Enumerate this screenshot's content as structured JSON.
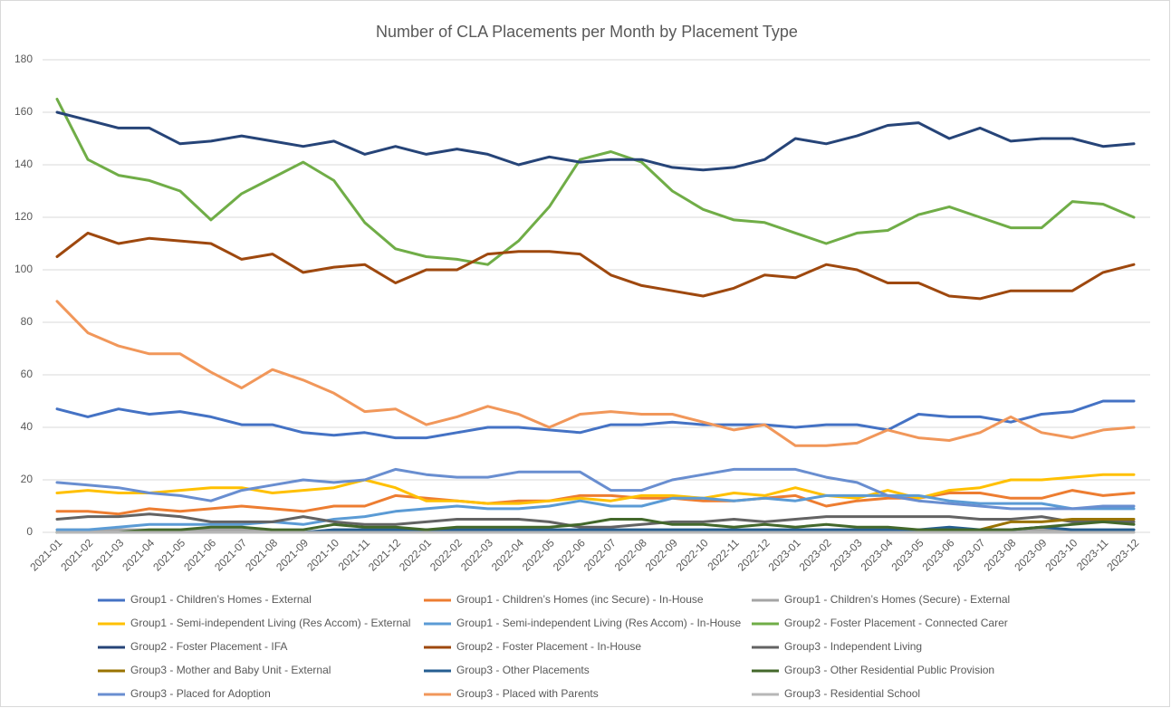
{
  "chart_data": {
    "type": "line",
    "title": "Number of CLA Placements per Month by Placement Type",
    "categories": [
      "2021-01",
      "2021-02",
      "2021-03",
      "2021-04",
      "2021-05",
      "2021-06",
      "2021-07",
      "2021-08",
      "2021-09",
      "2021-10",
      "2021-11",
      "2021-12",
      "2022-01",
      "2022-02",
      "2022-03",
      "2022-04",
      "2022-05",
      "2022-06",
      "2022-07",
      "2022-08",
      "2022-09",
      "2022-10",
      "2022-11",
      "2022-12",
      "2023-01",
      "2023-02",
      "2023-03",
      "2023-04",
      "2023-05",
      "2023-06",
      "2023-07",
      "2023-08",
      "2023-09",
      "2023-10",
      "2023-11",
      "2023-12"
    ],
    "ylim": [
      0,
      180
    ],
    "yticks": [
      0,
      20,
      40,
      60,
      80,
      100,
      120,
      140,
      160,
      180
    ],
    "grid": true,
    "series": [
      {
        "name": "Group1 - Children’s Homes - External",
        "color": "#4472c4",
        "values": [
          47,
          44,
          47,
          45,
          46,
          44,
          41,
          41,
          38,
          37,
          38,
          36,
          36,
          38,
          40,
          40,
          39,
          38,
          41,
          41,
          42,
          41,
          41,
          41,
          40,
          41,
          41,
          39,
          45,
          44,
          44,
          42,
          45,
          46,
          50,
          50
        ]
      },
      {
        "name": "Group1 - Children’s Homes (inc Secure) - In-House",
        "color": "#ed7d31",
        "values": [
          8,
          8,
          7,
          9,
          8,
          9,
          10,
          9,
          8,
          10,
          10,
          14,
          13,
          12,
          11,
          12,
          12,
          14,
          14,
          13,
          13,
          12,
          12,
          13,
          14,
          10,
          12,
          13,
          13,
          15,
          15,
          13,
          13,
          16,
          14,
          15
        ]
      },
      {
        "name": "Group1 - Children’s Homes (Secure) - External",
        "color": "#a5a5a5",
        "values": [
          1,
          1,
          1,
          1,
          1,
          1,
          1,
          0,
          0,
          1,
          1,
          1,
          1,
          1,
          1,
          1,
          1,
          1,
          1,
          1,
          1,
          1,
          1,
          1,
          1,
          1,
          1,
          1,
          1,
          1,
          1,
          1,
          1,
          1,
          1,
          1
        ]
      },
      {
        "name": "Group1 - Semi-independent Living (Res Accom) - External",
        "color": "#ffc000",
        "values": [
          15,
          16,
          15,
          15,
          16,
          17,
          17,
          15,
          16,
          17,
          20,
          17,
          12,
          12,
          11,
          11,
          12,
          13,
          12,
          14,
          14,
          13,
          15,
          14,
          17,
          14,
          13,
          16,
          13,
          16,
          17,
          20,
          20,
          21,
          22,
          22
        ]
      },
      {
        "name": "Group1 - Semi-independent Living (Res Accom) - In-House",
        "color": "#5b9bd5",
        "values": [
          1,
          1,
          2,
          3,
          3,
          3,
          3,
          4,
          3,
          5,
          6,
          8,
          9,
          10,
          9,
          9,
          10,
          12,
          10,
          10,
          13,
          13,
          12,
          13,
          12,
          14,
          14,
          14,
          14,
          12,
          11,
          11,
          11,
          9,
          9,
          9
        ]
      },
      {
        "name": "Group2 - Foster Placement - Connected Carer",
        "color": "#70ad47",
        "values": [
          165,
          142,
          136,
          134,
          130,
          119,
          129,
          135,
          141,
          134,
          118,
          108,
          105,
          104,
          102,
          111,
          124,
          142,
          145,
          141,
          130,
          123,
          119,
          118,
          114,
          110,
          114,
          115,
          121,
          124,
          120,
          116,
          116,
          126,
          125,
          120
        ]
      },
      {
        "name": "Group2 - Foster Placement - IFA",
        "color": "#264478",
        "values": [
          160,
          157,
          154,
          154,
          148,
          149,
          151,
          149,
          147,
          149,
          144,
          147,
          144,
          146,
          144,
          140,
          143,
          141,
          142,
          142,
          139,
          138,
          139,
          142,
          150,
          148,
          151,
          155,
          156,
          150,
          154,
          149,
          150,
          150,
          147,
          148
        ]
      },
      {
        "name": "Group2 - Foster Placement - In-House",
        "color": "#9e480e",
        "values": [
          105,
          114,
          110,
          112,
          111,
          110,
          104,
          106,
          99,
          101,
          102,
          95,
          100,
          100,
          106,
          107,
          107,
          106,
          98,
          94,
          92,
          90,
          93,
          98,
          97,
          102,
          100,
          95,
          95,
          90,
          89,
          92,
          92,
          92,
          99,
          102
        ]
      },
      {
        "name": "Group3 - Independent Living",
        "color": "#636363",
        "values": [
          5,
          6,
          6,
          7,
          6,
          4,
          4,
          4,
          6,
          4,
          3,
          3,
          4,
          5,
          5,
          5,
          4,
          2,
          2,
          3,
          4,
          4,
          5,
          4,
          5,
          6,
          6,
          6,
          6,
          6,
          5,
          5,
          6,
          4,
          4,
          4
        ]
      },
      {
        "name": "Group3 - Mother and Baby Unit - External",
        "color": "#997300",
        "values": [
          0,
          0,
          0,
          0,
          0,
          0,
          0,
          0,
          0,
          0,
          0,
          0,
          0,
          0,
          0,
          0,
          0,
          0,
          0,
          0,
          0,
          0,
          0,
          0,
          0,
          0,
          0,
          0,
          0,
          0,
          1,
          4,
          4,
          5,
          5,
          5
        ]
      },
      {
        "name": "Group3 - Other Placements",
        "color": "#255e91",
        "values": [
          0,
          0,
          0,
          0,
          0,
          0,
          0,
          0,
          0,
          1,
          1,
          1,
          1,
          1,
          1,
          1,
          1,
          1,
          1,
          1,
          1,
          1,
          1,
          1,
          1,
          1,
          1,
          1,
          1,
          2,
          1,
          1,
          2,
          1,
          1,
          1
        ]
      },
      {
        "name": "Group3 - Other Residential Public Provision",
        "color": "#43682b",
        "values": [
          0,
          0,
          0,
          1,
          1,
          2,
          2,
          1,
          1,
          3,
          2,
          2,
          1,
          2,
          2,
          2,
          2,
          3,
          5,
          5,
          3,
          3,
          2,
          3,
          2,
          3,
          2,
          2,
          1,
          1,
          1,
          1,
          2,
          3,
          4,
          3
        ]
      },
      {
        "name": "Group3 - Placed for Adoption",
        "color": "#698ed0",
        "values": [
          19,
          18,
          17,
          15,
          14,
          12,
          16,
          18,
          20,
          19,
          20,
          24,
          22,
          21,
          21,
          23,
          23,
          23,
          16,
          16,
          20,
          22,
          24,
          24,
          24,
          21,
          19,
          14,
          12,
          11,
          10,
          9,
          9,
          9,
          10,
          10
        ]
      },
      {
        "name": "Group3 - Placed with Parents",
        "color": "#f1975a",
        "values": [
          88,
          76,
          71,
          68,
          68,
          61,
          55,
          62,
          58,
          53,
          46,
          47,
          41,
          44,
          48,
          45,
          40,
          45,
          46,
          45,
          45,
          42,
          39,
          41,
          33,
          33,
          34,
          39,
          36,
          35,
          38,
          44,
          38,
          36,
          39,
          40
        ]
      },
      {
        "name": "Group3 - Residential School",
        "color": "#b7b7b7",
        "values": [
          0,
          0,
          0,
          0,
          0,
          0,
          0,
          0,
          0,
          0,
          0,
          0,
          0,
          0,
          0,
          0,
          0,
          0,
          0,
          0,
          0,
          0,
          0,
          0,
          0,
          0,
          0,
          0,
          0,
          0,
          0,
          0,
          0,
          0,
          0,
          0
        ]
      }
    ]
  }
}
